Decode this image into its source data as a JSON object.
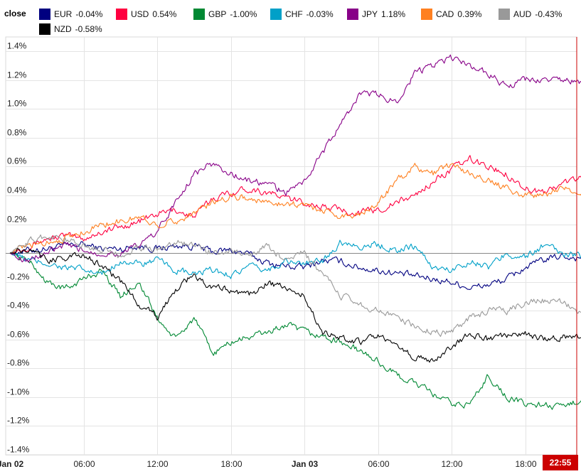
{
  "legend": {
    "title": "close",
    "items": [
      {
        "code": "EUR",
        "change": "-0.04%",
        "color": "#000080"
      },
      {
        "code": "USD",
        "change": "0.54%",
        "color": "#ff0040"
      },
      {
        "code": "GBP",
        "change": "-1.00%",
        "color": "#008833"
      },
      {
        "code": "CHF",
        "change": "-0.03%",
        "color": "#00a0c8"
      },
      {
        "code": "JPY",
        "change": "1.18%",
        "color": "#880088"
      },
      {
        "code": "CAD",
        "change": "0.39%",
        "color": "#ff8020"
      },
      {
        "code": "AUD",
        "change": "-0.43%",
        "color": "#999999"
      },
      {
        "code": "NZD",
        "change": "-0.58%",
        "color": "#000000"
      }
    ]
  },
  "chart_data": {
    "type": "line",
    "title": "",
    "xlabel": "",
    "ylabel": "",
    "ylim": [
      -1.4,
      1.5
    ],
    "grid": true,
    "legend_position": "top",
    "y_ticks": [
      "1.4%",
      "1.2%",
      "1.0%",
      "0.8%",
      "0.6%",
      "0.4%",
      "0.2%",
      "-0.2%",
      "-0.4%",
      "-0.6%",
      "-0.8%",
      "-1.0%",
      "-1.2%",
      "-1.4%"
    ],
    "x_ticks": [
      "Jan 02",
      "06:00",
      "12:00",
      "18:00",
      "Jan 03",
      "06:00",
      "12:00",
      "18:00"
    ],
    "current_time": "22:55",
    "x_hours": [
      0,
      1.5,
      3,
      4.5,
      6,
      7.5,
      9,
      10.5,
      12,
      13.5,
      15,
      16.5,
      18,
      19.5,
      21,
      22.5,
      24,
      25.5,
      27,
      28.5,
      30,
      31.5,
      33,
      34.5,
      36,
      37.5,
      39,
      40.5,
      42,
      43.5,
      45,
      46.9
    ],
    "series": [
      {
        "name": "EUR",
        "color": "#000080",
        "values": [
          0.0,
          0.02,
          0.03,
          0.05,
          0.06,
          0.03,
          0.03,
          0.05,
          0.03,
          0.05,
          0.05,
          0.01,
          0.02,
          -0.01,
          -0.07,
          -0.09,
          -0.1,
          -0.05,
          -0.06,
          -0.1,
          -0.12,
          -0.14,
          -0.16,
          -0.18,
          -0.2,
          -0.24,
          -0.22,
          -0.18,
          -0.1,
          -0.05,
          -0.02,
          -0.04
        ]
      },
      {
        "name": "USD",
        "color": "#ff0040",
        "values": [
          0.0,
          0.05,
          0.1,
          0.12,
          0.1,
          0.15,
          0.18,
          0.22,
          0.27,
          0.3,
          0.25,
          0.38,
          0.42,
          0.45,
          0.42,
          0.38,
          0.35,
          0.32,
          0.3,
          0.28,
          0.3,
          0.35,
          0.4,
          0.5,
          0.58,
          0.65,
          0.6,
          0.55,
          0.45,
          0.42,
          0.48,
          0.54
        ]
      },
      {
        "name": "GBP",
        "color": "#008833",
        "values": [
          0.0,
          -0.05,
          -0.2,
          -0.25,
          -0.18,
          -0.12,
          -0.3,
          -0.2,
          -0.45,
          -0.6,
          -0.45,
          -0.7,
          -0.62,
          -0.58,
          -0.55,
          -0.5,
          -0.55,
          -0.58,
          -0.62,
          -0.68,
          -0.75,
          -0.85,
          -0.9,
          -0.98,
          -1.05,
          -1.05,
          -0.85,
          -1.0,
          -1.05,
          -1.05,
          -1.08,
          -1.0
        ]
      },
      {
        "name": "CHF",
        "color": "#00a0c8",
        "values": [
          0.0,
          -0.05,
          -0.07,
          -0.1,
          -0.12,
          -0.15,
          -0.05,
          -0.08,
          -0.05,
          -0.12,
          -0.15,
          -0.12,
          -0.15,
          -0.1,
          -0.12,
          -0.05,
          -0.08,
          -0.05,
          0.08,
          0.05,
          0.06,
          0.02,
          0.05,
          -0.1,
          -0.12,
          -0.05,
          -0.1,
          0.0,
          -0.03,
          0.05,
          0.0,
          -0.03
        ]
      },
      {
        "name": "JPY",
        "color": "#880088",
        "values": [
          0.0,
          -0.05,
          0.0,
          0.05,
          0.02,
          0.0,
          0.0,
          0.05,
          0.15,
          0.35,
          0.55,
          0.62,
          0.55,
          0.5,
          0.48,
          0.42,
          0.5,
          0.7,
          0.9,
          1.1,
          1.1,
          1.05,
          1.25,
          1.3,
          1.35,
          1.3,
          1.25,
          1.15,
          1.2,
          1.2,
          1.2,
          1.18
        ]
      },
      {
        "name": "CAD",
        "color": "#ff8020",
        "values": [
          0.0,
          0.05,
          0.08,
          0.1,
          0.15,
          0.2,
          0.22,
          0.25,
          0.2,
          0.22,
          0.28,
          0.35,
          0.4,
          0.38,
          0.35,
          0.35,
          0.33,
          0.3,
          0.25,
          0.28,
          0.35,
          0.5,
          0.6,
          0.55,
          0.62,
          0.55,
          0.5,
          0.45,
          0.4,
          0.4,
          0.45,
          0.39
        ]
      },
      {
        "name": "AUD",
        "color": "#999999",
        "values": [
          0.0,
          0.08,
          0.12,
          0.1,
          0.05,
          0.02,
          -0.02,
          0.05,
          0.02,
          0.08,
          0.05,
          0.0,
          0.02,
          -0.02,
          0.05,
          -0.05,
          0.0,
          -0.15,
          -0.3,
          -0.35,
          -0.4,
          -0.45,
          -0.5,
          -0.55,
          -0.55,
          -0.45,
          -0.4,
          -0.4,
          -0.35,
          -0.33,
          -0.35,
          -0.43
        ]
      },
      {
        "name": "NZD",
        "color": "#000000",
        "values": [
          0.0,
          0.02,
          -0.05,
          -0.03,
          -0.02,
          -0.08,
          -0.2,
          -0.35,
          -0.45,
          -0.25,
          -0.15,
          -0.25,
          -0.25,
          -0.3,
          -0.2,
          -0.25,
          -0.3,
          -0.55,
          -0.58,
          -0.62,
          -0.58,
          -0.65,
          -0.72,
          -0.75,
          -0.65,
          -0.55,
          -0.6,
          -0.58,
          -0.55,
          -0.6,
          -0.58,
          -0.58
        ]
      }
    ]
  }
}
